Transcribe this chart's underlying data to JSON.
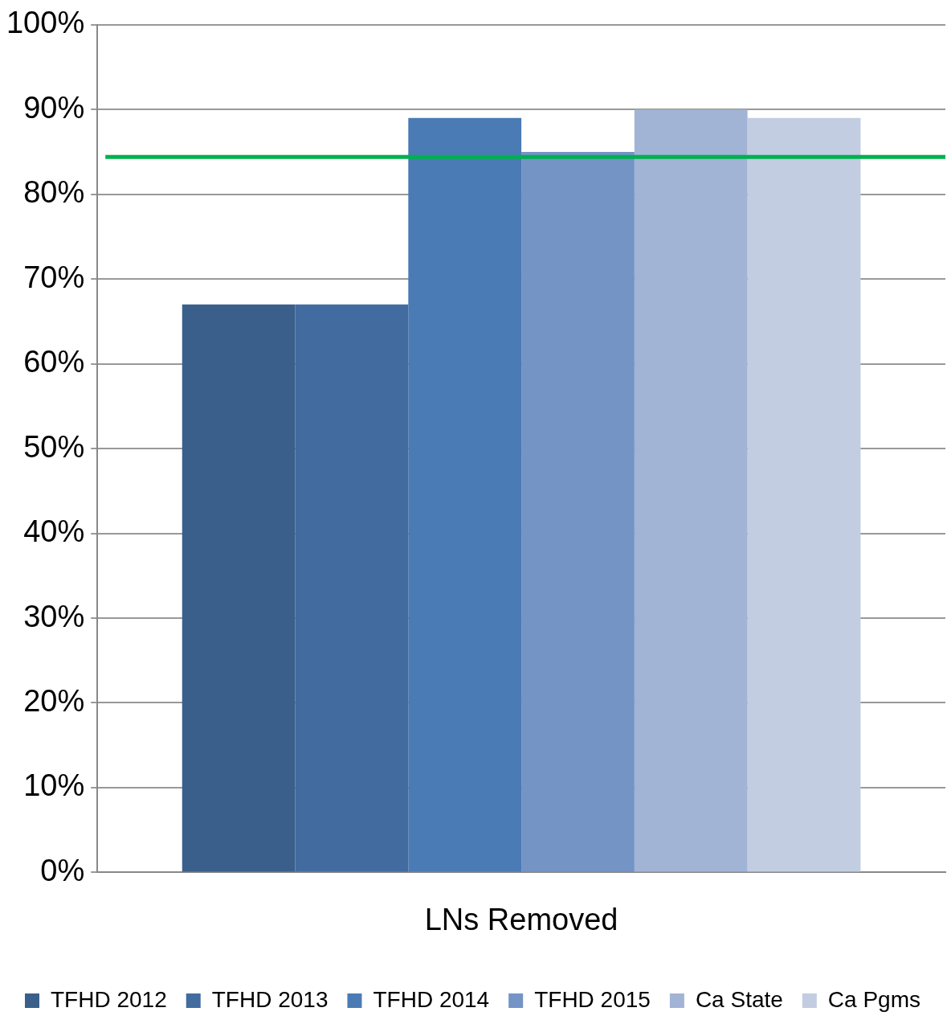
{
  "chart_data": {
    "type": "bar",
    "categories": [
      "LNs Removed"
    ],
    "series": [
      {
        "name": "TFHD 2012",
        "color": "#3a5f8b",
        "values": [
          67
        ]
      },
      {
        "name": "TFHD 2013",
        "color": "#426c9f",
        "values": [
          67
        ]
      },
      {
        "name": "TFHD 2014",
        "color": "#4a7bb5",
        "values": [
          89
        ]
      },
      {
        "name": "TFHD 2015",
        "color": "#7394c5",
        "values": [
          85
        ]
      },
      {
        "name": "Ca State",
        "color": "#a1b4d6",
        "values": [
          90
        ]
      },
      {
        "name": "Ca Pgms",
        "color": "#c2cde2",
        "values": [
          89
        ]
      }
    ],
    "ylim": [
      0,
      100
    ],
    "yticks": [
      {
        "value": 0,
        "label": "0%"
      },
      {
        "value": 10,
        "label": "10%"
      },
      {
        "value": 20,
        "label": "20%"
      },
      {
        "value": 30,
        "label": "30%"
      },
      {
        "value": 40,
        "label": "40%"
      },
      {
        "value": 50,
        "label": "50%"
      },
      {
        "value": 60,
        "label": "60%"
      },
      {
        "value": 70,
        "label": "70%"
      },
      {
        "value": 80,
        "label": "80%"
      },
      {
        "value": 90,
        "label": "90%"
      },
      {
        "value": 100,
        "label": "100%"
      }
    ],
    "ref_lines": [
      {
        "axis": "y",
        "value": 84.4,
        "color": "#00b050"
      }
    ],
    "grid": "y",
    "legend": "bottom"
  }
}
